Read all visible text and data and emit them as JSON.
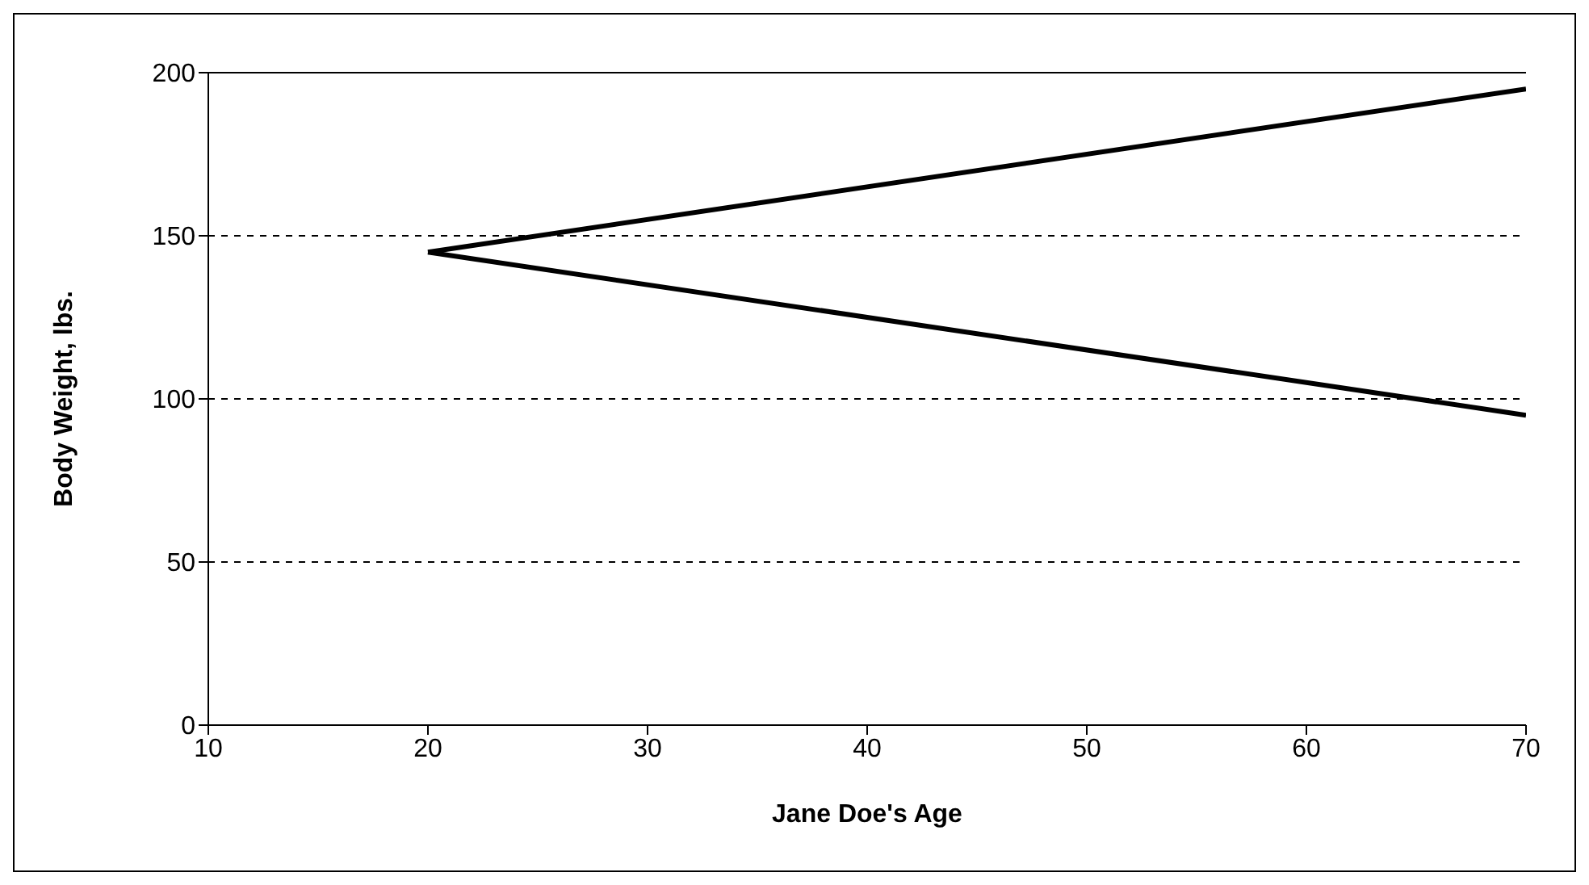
{
  "chart_data": {
    "type": "line",
    "xlabel": "Jane Doe's Age",
    "ylabel": "Body Weight, lbs.",
    "x": [
      20,
      70
    ],
    "series": [
      {
        "color": "#000000",
        "values": [
          145,
          195
        ]
      },
      {
        "color": "#000000",
        "values": [
          145,
          95
        ]
      }
    ],
    "xlim": [
      10,
      70
    ],
    "xticks": [
      10,
      20,
      30,
      40,
      50,
      60,
      70
    ],
    "ylim": [
      0,
      200
    ],
    "yticks": [
      0,
      50,
      100,
      150,
      200
    ],
    "grid": "y",
    "marker": "none",
    "line_style": "solid",
    "legend": false
  }
}
